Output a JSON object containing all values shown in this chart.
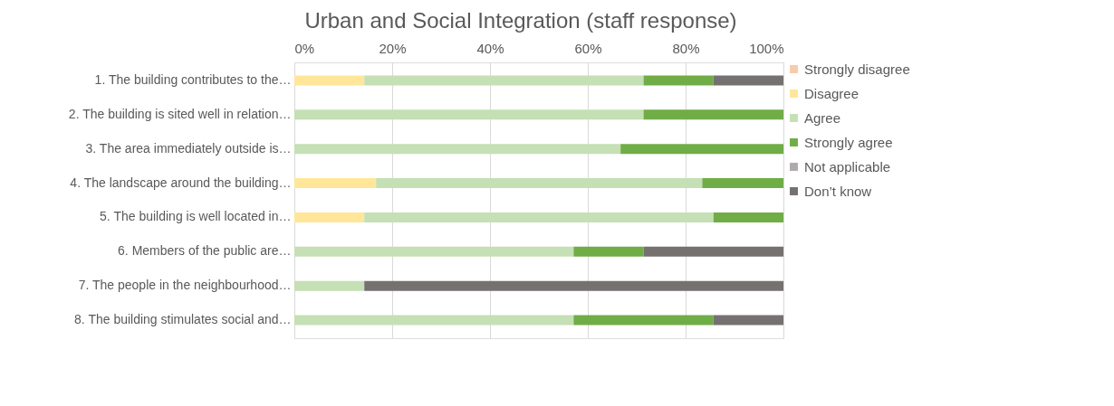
{
  "chart_data": {
    "type": "bar",
    "orientation": "horizontal",
    "stacked": true,
    "title": "Urban and Social Integration (staff response)",
    "categories": [
      "1. The building contributes to the…",
      "2. The building is sited well in relation…",
      "3. The area immediately outside is…",
      "4. The landscape around the building…",
      "5. The building is well located in…",
      "6. Members of the public are…",
      "7. The people in the neighbourhood…",
      "8. The building stimulates social and…"
    ],
    "series": [
      {
        "name": "Strongly disagree",
        "color": "#f8cbad",
        "values": [
          0,
          0,
          0,
          0,
          0,
          0,
          0,
          0
        ]
      },
      {
        "name": "Disagree",
        "color": "#ffe699",
        "values": [
          14.3,
          0,
          0,
          16.7,
          14.3,
          0,
          0,
          0
        ]
      },
      {
        "name": "Agree",
        "color": "#c5e0b4",
        "values": [
          57.1,
          71.4,
          66.7,
          66.7,
          71.4,
          57.1,
          14.3,
          57.1
        ]
      },
      {
        "name": "Strongly agree",
        "color": "#70ad47",
        "values": [
          14.3,
          28.6,
          33.3,
          16.6,
          14.3,
          14.3,
          0,
          28.6
        ]
      },
      {
        "name": "Not applicable",
        "color": "#afabab",
        "values": [
          0,
          0,
          0,
          0,
          0,
          0,
          0,
          0
        ]
      },
      {
        "name": "Don’t know",
        "color": "#767171",
        "values": [
          14.3,
          0,
          0,
          0,
          0,
          28.6,
          85.7,
          14.3
        ]
      }
    ],
    "xlim": [
      0,
      100
    ],
    "xticks": [
      {
        "value": 0,
        "label": "0%"
      },
      {
        "value": 20,
        "label": "20%"
      },
      {
        "value": 40,
        "label": "40%"
      },
      {
        "value": 60,
        "label": "60%"
      },
      {
        "value": 80,
        "label": "80%"
      },
      {
        "value": 100,
        "label": "100%"
      }
    ],
    "grid": "x",
    "legend": "right"
  }
}
